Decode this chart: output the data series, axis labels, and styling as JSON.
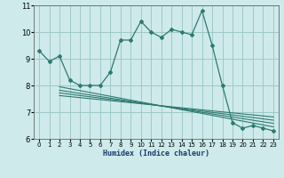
{
  "xlabel": "Humidex (Indice chaleur)",
  "bg_color": "#ceeaea",
  "grid_color": "#a0c8c8",
  "line_color": "#2d7a70",
  "xlim": [
    -0.5,
    23.5
  ],
  "ylim": [
    6,
    11
  ],
  "yticks": [
    6,
    7,
    8,
    9,
    10,
    11
  ],
  "xticks": [
    0,
    1,
    2,
    3,
    4,
    5,
    6,
    7,
    8,
    9,
    10,
    11,
    12,
    13,
    14,
    15,
    16,
    17,
    18,
    19,
    20,
    21,
    22,
    23
  ],
  "main_x": [
    0,
    1,
    2,
    3,
    4,
    5,
    6,
    7,
    8,
    9,
    10,
    11,
    12,
    13,
    14,
    15,
    16,
    17,
    18,
    19,
    20,
    21,
    22,
    23
  ],
  "main_y": [
    9.3,
    8.9,
    9.1,
    8.2,
    8.0,
    8.0,
    8.0,
    8.5,
    9.7,
    9.7,
    10.4,
    10.0,
    9.8,
    10.1,
    10.0,
    9.9,
    10.8,
    9.5,
    8.0,
    6.6,
    6.4,
    6.5,
    6.4,
    6.3
  ],
  "diag_lines": [
    {
      "x": [
        2,
        23
      ],
      "y": [
        7.95,
        6.45
      ]
    },
    {
      "x": [
        2,
        23
      ],
      "y": [
        7.82,
        6.58
      ]
    },
    {
      "x": [
        2,
        23
      ],
      "y": [
        7.72,
        6.7
      ]
    },
    {
      "x": [
        2,
        23
      ],
      "y": [
        7.62,
        6.82
      ]
    }
  ]
}
